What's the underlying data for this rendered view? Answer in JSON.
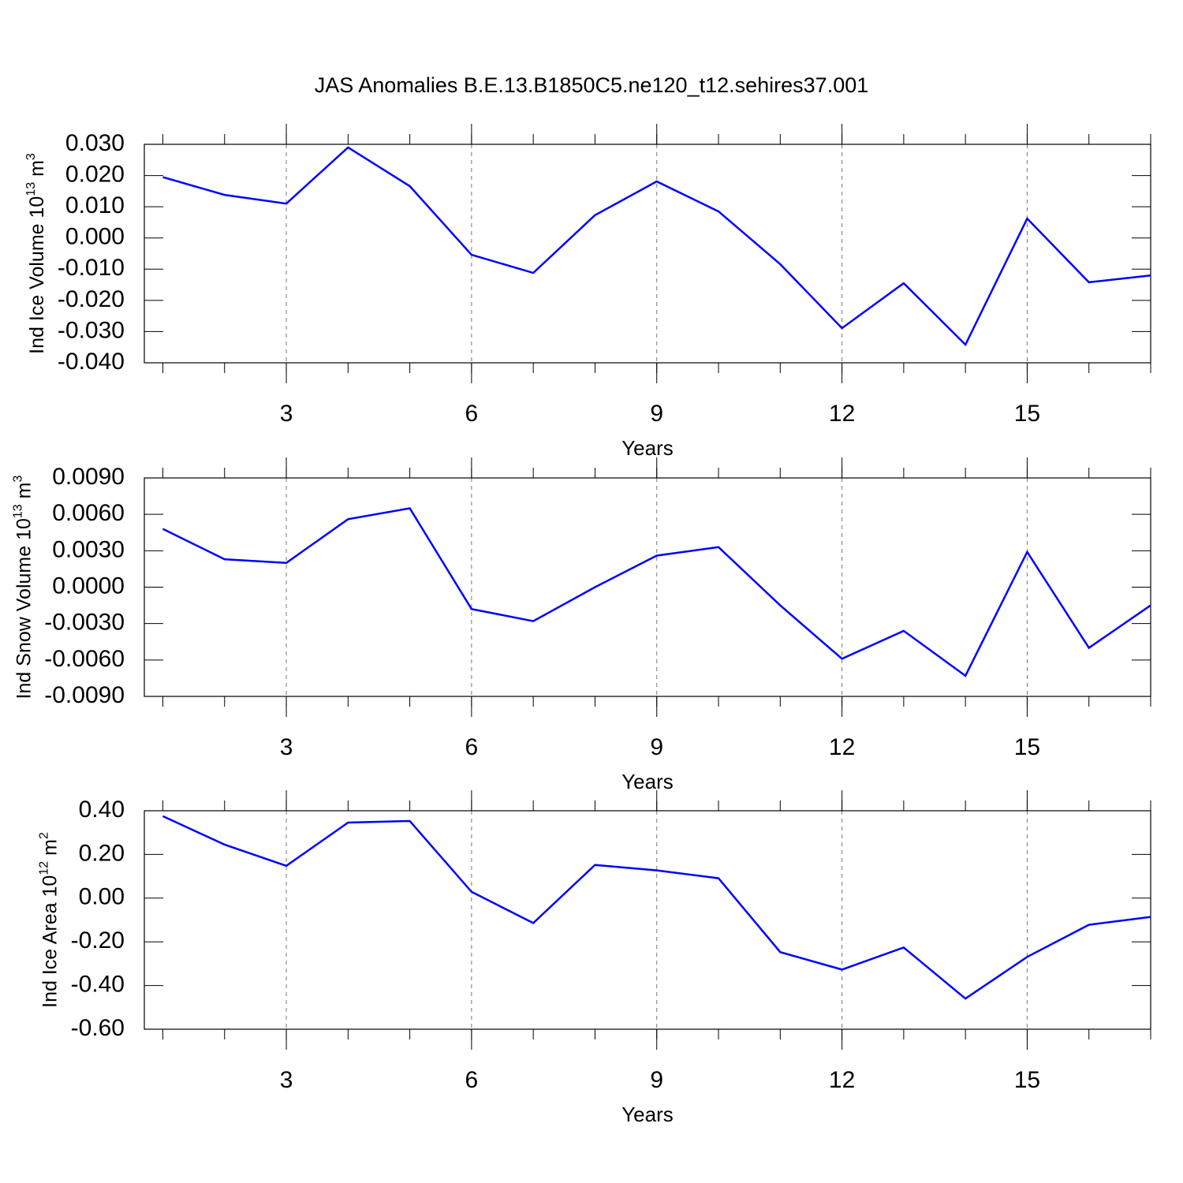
{
  "chart_data": [
    {
      "type": "line",
      "title": "JAS Anomalies B.E.13.B1850C5.ne120_t12.sehires37.001",
      "ylabel": {
        "text": "Ind Ice Volume 10",
        "exponent": "13",
        "unit": "m",
        "unit_exponent": "3"
      },
      "xlabel": "Years",
      "color": "#0000ff",
      "grid": true,
      "x": [
        1,
        2,
        3,
        4,
        5,
        6,
        7,
        8,
        9,
        10,
        11,
        12,
        13,
        14,
        15,
        16,
        17
      ],
      "values": [
        0.0195,
        0.0138,
        0.011,
        0.029,
        0.0166,
        -0.0054,
        -0.0112,
        0.0073,
        0.0181,
        0.0085,
        -0.0084,
        -0.0289,
        -0.0145,
        -0.0342,
        0.0062,
        -0.0142,
        -0.012
      ],
      "xlim": [
        0.7,
        17
      ],
      "xticks": [
        3,
        6,
        9,
        12,
        15
      ],
      "ylim": [
        -0.04,
        0.03
      ],
      "yticks": [
        {
          "value": -0.04,
          "label": "-0.040"
        },
        {
          "value": -0.03,
          "label": "-0.030"
        },
        {
          "value": -0.02,
          "label": "-0.020"
        },
        {
          "value": -0.01,
          "label": "-0.010"
        },
        {
          "value": 0,
          "label": "0.000"
        },
        {
          "value": 0.01,
          "label": "0.010"
        },
        {
          "value": 0.02,
          "label": "0.020"
        },
        {
          "value": 0.03,
          "label": "0.030"
        }
      ]
    },
    {
      "type": "line",
      "ylabel": {
        "text": "Ind Snow Volume 10",
        "exponent": "13",
        "unit": "m",
        "unit_exponent": "3"
      },
      "xlabel": "Years",
      "color": "#0000ff",
      "grid": true,
      "x": [
        1,
        2,
        3,
        4,
        5,
        6,
        7,
        8,
        9,
        10,
        11,
        12,
        13,
        14,
        15,
        16,
        17
      ],
      "values": [
        0.0048,
        0.0023,
        0.002,
        0.0056,
        0.0065,
        -0.0018,
        -0.0028,
        0.0,
        0.0026,
        0.0033,
        -0.0015,
        -0.0059,
        -0.0036,
        -0.0073,
        0.0029,
        -0.005,
        -0.0015
      ],
      "xlim": [
        0.7,
        17
      ],
      "xticks": [
        3,
        6,
        9,
        12,
        15
      ],
      "ylim": [
        -0.009,
        0.009
      ],
      "yticks": [
        {
          "value": -0.009,
          "label": "-0.0090"
        },
        {
          "value": -0.006,
          "label": "-0.0060"
        },
        {
          "value": -0.003,
          "label": "-0.0030"
        },
        {
          "value": 0,
          "label": "0.0000"
        },
        {
          "value": 0.003,
          "label": "0.0030"
        },
        {
          "value": 0.006,
          "label": "0.0060"
        },
        {
          "value": 0.009,
          "label": "0.0090"
        }
      ]
    },
    {
      "type": "line",
      "ylabel": {
        "text": "Ind Ice Area 10",
        "exponent": "12",
        "unit": "m",
        "unit_exponent": "2"
      },
      "xlabel": "Years",
      "color": "#0000ff",
      "grid": true,
      "x": [
        1,
        2,
        3,
        4,
        5,
        6,
        7,
        8,
        9,
        10,
        11,
        12,
        13,
        14,
        15,
        16,
        17
      ],
      "values": [
        0.375,
        0.245,
        0.148,
        0.346,
        0.353,
        0.029,
        -0.114,
        0.152,
        0.127,
        0.091,
        -0.247,
        -0.327,
        -0.226,
        -0.46,
        -0.269,
        -0.122,
        -0.086
      ],
      "xlim": [
        0.7,
        17
      ],
      "xticks": [
        3,
        6,
        9,
        12,
        15
      ],
      "ylim": [
        -0.6,
        0.4
      ],
      "yticks": [
        {
          "value": -0.6,
          "label": "-0.60"
        },
        {
          "value": -0.4,
          "label": "-0.40"
        },
        {
          "value": -0.2,
          "label": "-0.20"
        },
        {
          "value": 0,
          "label": "0.00"
        },
        {
          "value": 0.2,
          "label": "0.20"
        },
        {
          "value": 0.4,
          "label": "0.40"
        }
      ]
    }
  ]
}
